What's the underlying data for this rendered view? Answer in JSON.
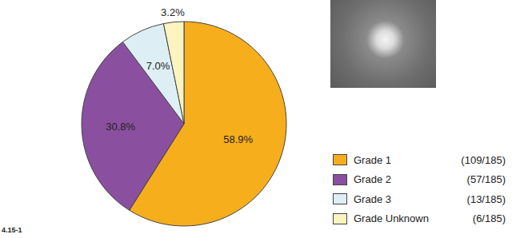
{
  "chart_data": {
    "type": "pie",
    "categories": [
      "Grade 1",
      "Grade 2",
      "Grade 3",
      "Grade Unknown"
    ],
    "values": [
      58.9,
      30.8,
      7.0,
      3.2
    ],
    "value_labels": [
      "58.9%",
      "30.8%",
      "7.0%",
      "3.2%"
    ],
    "legend_labels": [
      "(109/185)",
      "(57/185)",
      "(13/185)",
      "(6/185)"
    ],
    "colors": [
      "#F6AE1C",
      "#8B4F9F",
      "#DDEFF5",
      "#FBF3C0"
    ],
    "data_labels": true,
    "legend": "right",
    "figure_label": "4.15-1"
  }
}
